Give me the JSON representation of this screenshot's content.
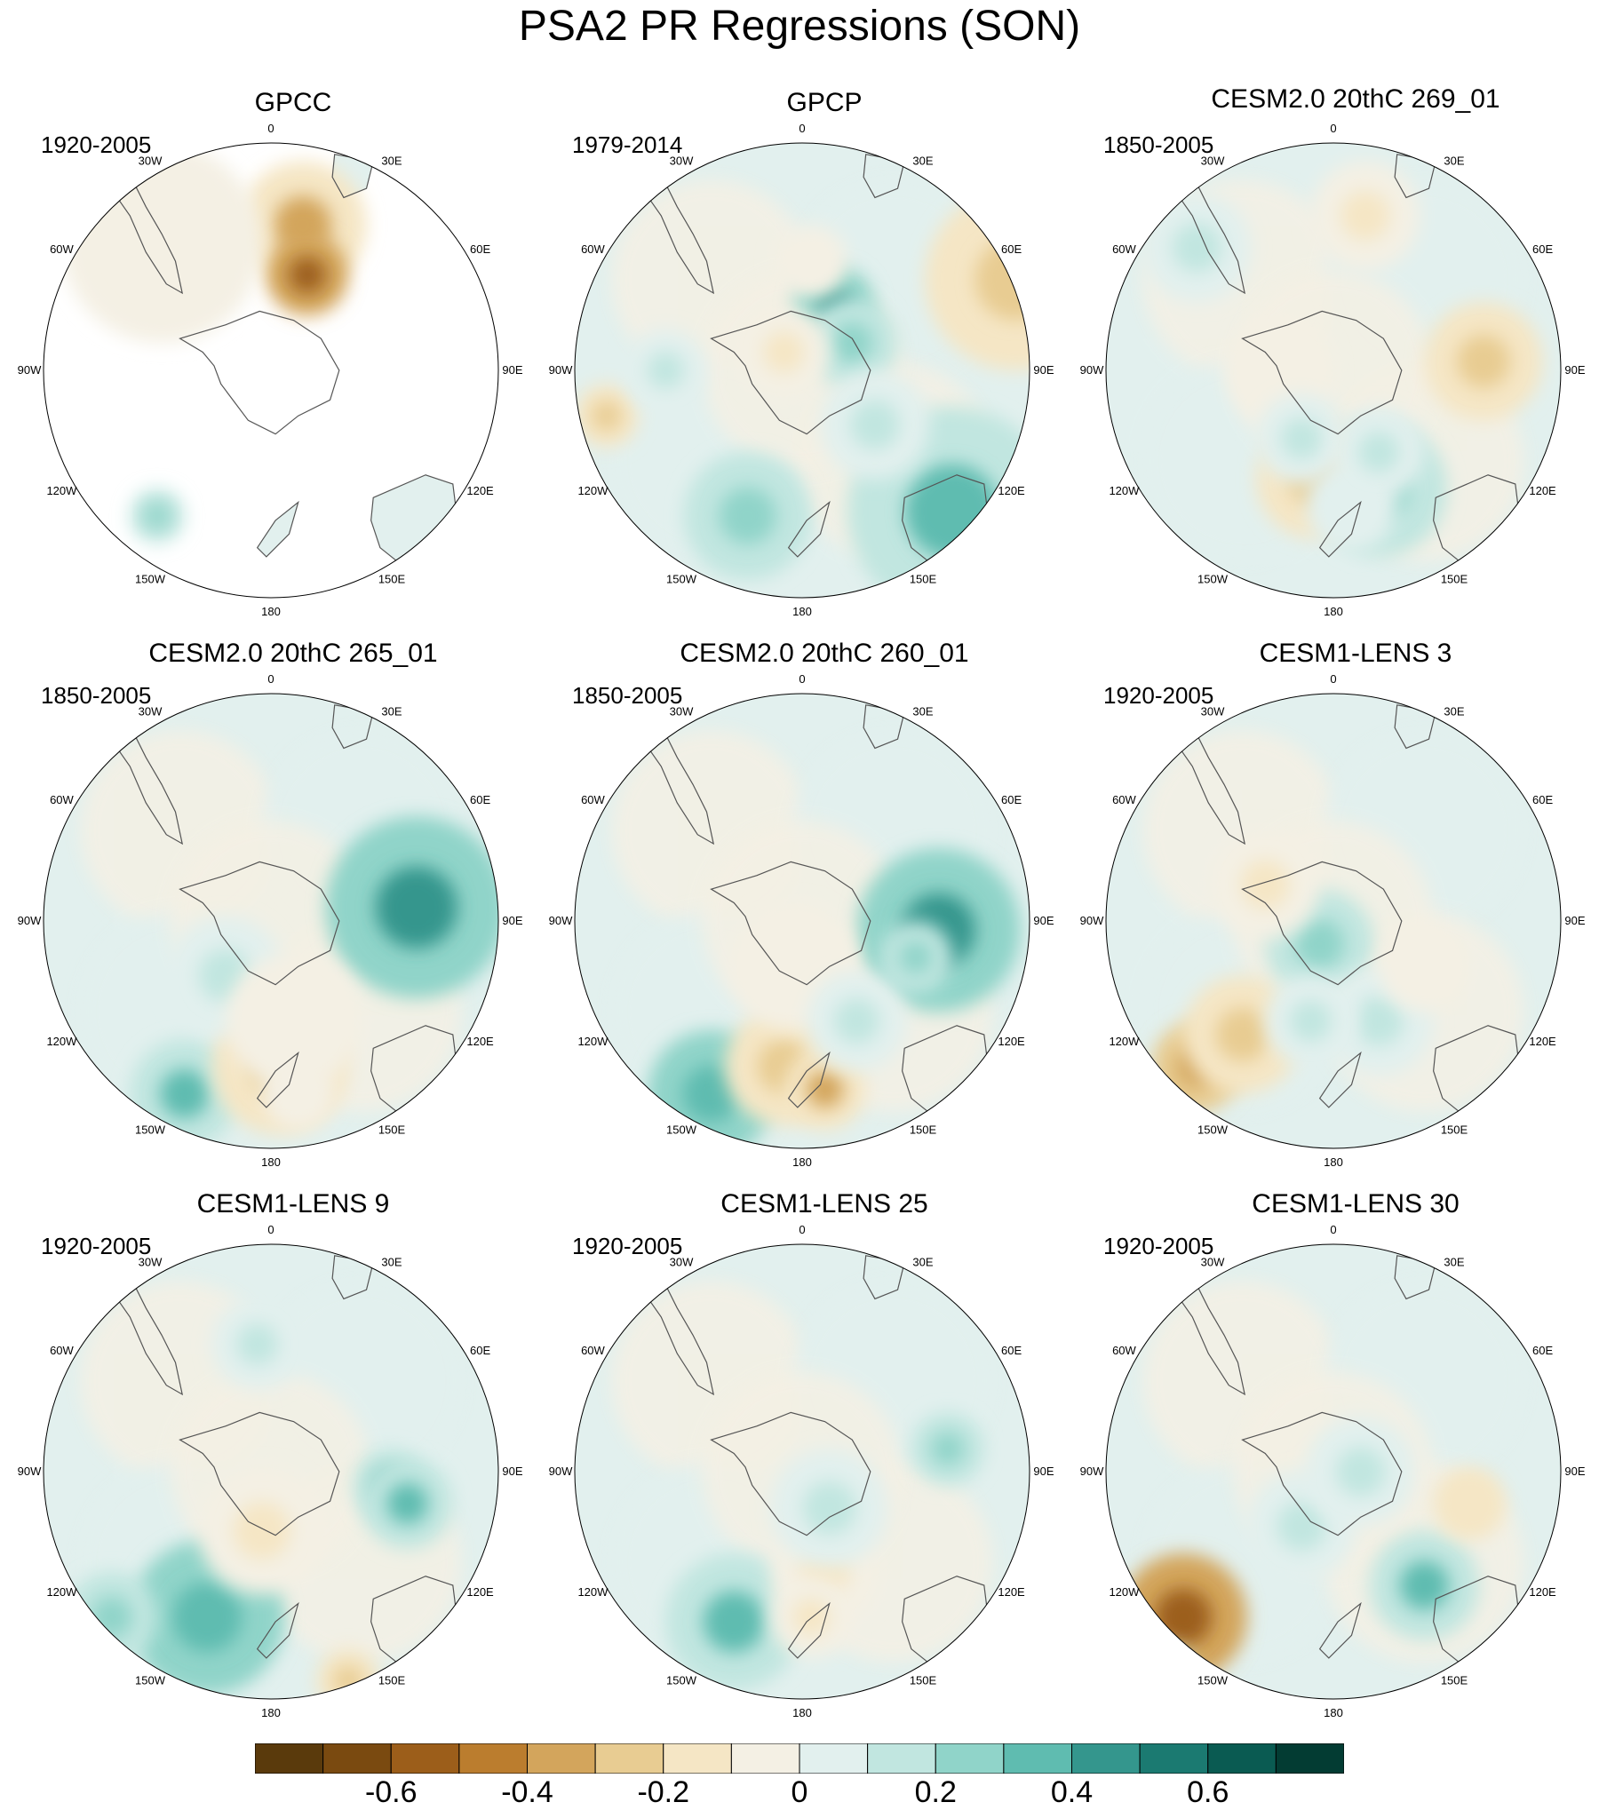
{
  "title": "PSA2 PR Regressions (SON)",
  "longitude_labels": [
    "0",
    "30E",
    "60E",
    "90E",
    "120E",
    "150E",
    "180",
    "150W",
    "120W",
    "90W",
    "60W",
    "30W"
  ],
  "panels": [
    {
      "title": "GPCC",
      "period": "1920-2005",
      "coverage": "land-only",
      "features": [
        [
          0.57,
          0.18,
          0.14,
          -0.35
        ],
        [
          0.58,
          0.29,
          0.09,
          -0.55
        ],
        [
          0.26,
          0.22,
          0.22,
          -0.08
        ],
        [
          0.25,
          0.82,
          0.06,
          0.2
        ]
      ]
    },
    {
      "title": "GPCP",
      "period": "1979-2014",
      "coverage": "full",
      "features": [
        [
          0.57,
          0.36,
          0.09,
          0.45
        ],
        [
          0.61,
          0.44,
          0.1,
          0.28
        ],
        [
          0.97,
          0.3,
          0.2,
          -0.26
        ],
        [
          0.07,
          0.6,
          0.07,
          -0.22
        ],
        [
          0.83,
          0.81,
          0.23,
          0.32
        ],
        [
          0.66,
          0.62,
          0.12,
          0.18
        ],
        [
          0.46,
          0.46,
          0.1,
          -0.12
        ],
        [
          0.2,
          0.5,
          0.09,
          0.12
        ],
        [
          0.38,
          0.82,
          0.14,
          0.26
        ],
        [
          0.52,
          0.26,
          0.08,
          -0.1
        ]
      ]
    },
    {
      "title": "CESM2.0 20thC 269_01",
      "period": "1850-2005",
      "coverage": "full",
      "features": [
        [
          0.6,
          0.76,
          0.15,
          0.28
        ],
        [
          0.83,
          0.48,
          0.13,
          -0.24
        ],
        [
          0.46,
          0.74,
          0.13,
          -0.22
        ],
        [
          0.38,
          0.5,
          0.12,
          -0.08
        ],
        [
          0.43,
          0.65,
          0.1,
          0.15
        ],
        [
          0.54,
          0.8,
          0.1,
          0.08
        ],
        [
          0.57,
          0.16,
          0.12,
          -0.12
        ],
        [
          0.2,
          0.23,
          0.12,
          0.14
        ],
        [
          0.6,
          0.68,
          0.1,
          0.1
        ]
      ]
    },
    {
      "title": "CESM2.0 20thC 265_01",
      "period": "1850-2005",
      "coverage": "full",
      "features": [
        [
          0.31,
          0.88,
          0.12,
          0.3
        ],
        [
          0.52,
          0.82,
          0.15,
          -0.24
        ],
        [
          0.82,
          0.47,
          0.2,
          0.42
        ],
        [
          0.56,
          0.88,
          0.08,
          -0.1
        ],
        [
          0.4,
          0.62,
          0.13,
          0.1
        ],
        [
          0.55,
          0.72,
          0.15,
          -0.08
        ]
      ]
    },
    {
      "title": "CESM2.0 20thC 260_01",
      "period": "1850-2005",
      "coverage": "full",
      "features": [
        [
          0.3,
          0.88,
          0.14,
          0.38
        ],
        [
          0.46,
          0.82,
          0.13,
          -0.25
        ],
        [
          0.8,
          0.52,
          0.18,
          0.4
        ],
        [
          0.55,
          0.87,
          0.09,
          -0.32
        ],
        [
          0.75,
          0.58,
          0.08,
          0.25
        ],
        [
          0.48,
          0.6,
          0.14,
          -0.1
        ],
        [
          0.62,
          0.72,
          0.11,
          0.12
        ]
      ]
    },
    {
      "title": "CESM1-LENS 3",
      "period": "1920-2005",
      "coverage": "full",
      "features": [
        [
          0.2,
          0.82,
          0.1,
          -0.4
        ],
        [
          0.3,
          0.75,
          0.13,
          -0.26
        ],
        [
          0.47,
          0.55,
          0.12,
          0.22
        ],
        [
          0.6,
          0.72,
          0.12,
          0.15
        ],
        [
          0.45,
          0.72,
          0.1,
          0.1
        ],
        [
          0.7,
          0.6,
          0.1,
          -0.1
        ],
        [
          0.35,
          0.42,
          0.12,
          -0.12
        ]
      ]
    },
    {
      "title": "CESM1-LENS 9",
      "period": "1920-2005",
      "coverage": "full",
      "features": [
        [
          0.36,
          0.82,
          0.17,
          0.38
        ],
        [
          0.15,
          0.82,
          0.1,
          0.28
        ],
        [
          0.76,
          0.53,
          0.08,
          0.35
        ],
        [
          0.8,
          0.57,
          0.1,
          0.3
        ],
        [
          0.67,
          0.96,
          0.07,
          -0.22
        ],
        [
          0.48,
          0.63,
          0.14,
          -0.15
        ],
        [
          0.47,
          0.22,
          0.1,
          0.1
        ]
      ]
    },
    {
      "title": "CESM1-LENS 25",
      "period": "1920-2005",
      "coverage": "full",
      "features": [
        [
          0.35,
          0.83,
          0.15,
          0.32
        ],
        [
          0.55,
          0.72,
          0.12,
          -0.15
        ],
        [
          0.82,
          0.45,
          0.08,
          0.2
        ],
        [
          0.56,
          0.58,
          0.13,
          0.12
        ],
        [
          0.52,
          0.82,
          0.09,
          -0.12
        ]
      ]
    },
    {
      "title": "CESM1-LENS 30",
      "period": "1920-2005",
      "coverage": "full",
      "features": [
        [
          0.17,
          0.82,
          0.14,
          -0.55
        ],
        [
          0.7,
          0.75,
          0.12,
          0.32
        ],
        [
          0.8,
          0.57,
          0.08,
          -0.2
        ],
        [
          0.43,
          0.62,
          0.12,
          0.16
        ],
        [
          0.56,
          0.5,
          0.12,
          0.14
        ],
        [
          0.13,
          0.95,
          0.07,
          0.22
        ]
      ]
    }
  ],
  "colorbar": {
    "levels": [
      -0.8,
      -0.7,
      -0.6,
      -0.5,
      -0.4,
      -0.3,
      -0.2,
      -0.1,
      0,
      0.1,
      0.2,
      0.3,
      0.4,
      0.5,
      0.6,
      0.7,
      0.8
    ],
    "colors": [
      "#5a3a0c",
      "#7a4a10",
      "#9c5e1a",
      "#bb7d2e",
      "#d3a55c",
      "#e8cc92",
      "#f5e6c5",
      "#f4f0e4",
      "#e2f0ee",
      "#c1e6e0",
      "#90d4c9",
      "#5fbcb0",
      "#34968d",
      "#1b7a71",
      "#0a5b52",
      "#033c33"
    ],
    "tick_labels": [
      "-0.6",
      "-0.4",
      "-0.2",
      "0",
      "0.2",
      "0.4",
      "0.6"
    ],
    "tick_values": [
      -0.6,
      -0.4,
      -0.2,
      0,
      0.2,
      0.4,
      0.6
    ]
  }
}
